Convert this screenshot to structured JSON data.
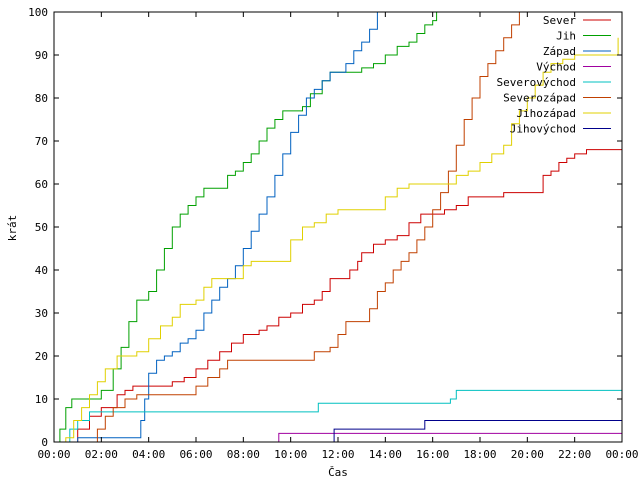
{
  "chart_data": {
    "type": "line",
    "xlabel": "Čas",
    "ylabel": "krát",
    "xlim": [
      "00:00",
      "24:00"
    ],
    "ylim": [
      0,
      100
    ],
    "x_ticks": [
      "00:00",
      "02:00",
      "04:00",
      "06:00",
      "08:00",
      "10:00",
      "12:00",
      "14:00",
      "16:00",
      "18:00",
      "20:00",
      "22:00",
      "00:00"
    ],
    "y_ticks": [
      0,
      10,
      20,
      30,
      40,
      50,
      60,
      70,
      80,
      90,
      100
    ],
    "legend_position": "top-right",
    "step": true,
    "series": [
      {
        "name": "Sever",
        "color": "#cc0000",
        "points": [
          [
            "00:00",
            0
          ],
          [
            "00:30",
            0
          ],
          [
            "01:00",
            3
          ],
          [
            "01:30",
            6
          ],
          [
            "02:00",
            8
          ],
          [
            "02:40",
            11
          ],
          [
            "03:00",
            12
          ],
          [
            "03:20",
            13
          ],
          [
            "04:30",
            13
          ],
          [
            "05:00",
            14
          ],
          [
            "05:30",
            15
          ],
          [
            "06:00",
            17
          ],
          [
            "06:30",
            19
          ],
          [
            "07:00",
            21
          ],
          [
            "07:30",
            23
          ],
          [
            "08:00",
            25
          ],
          [
            "08:40",
            26
          ],
          [
            "09:00",
            27
          ],
          [
            "09:30",
            29
          ],
          [
            "10:00",
            30
          ],
          [
            "10:30",
            32
          ],
          [
            "11:00",
            33
          ],
          [
            "11:20",
            35
          ],
          [
            "11:40",
            38
          ],
          [
            "12:30",
            40
          ],
          [
            "12:50",
            42
          ],
          [
            "13:00",
            44
          ],
          [
            "13:30",
            46
          ],
          [
            "14:00",
            47
          ],
          [
            "14:30",
            48
          ],
          [
            "15:00",
            51
          ],
          [
            "15:30",
            53
          ],
          [
            "16:30",
            54
          ],
          [
            "17:00",
            55
          ],
          [
            "17:30",
            57
          ],
          [
            "18:30",
            57
          ],
          [
            "19:00",
            58
          ],
          [
            "20:00",
            58
          ],
          [
            "20:40",
            62
          ],
          [
            "21:00",
            63
          ],
          [
            "21:20",
            65
          ],
          [
            "21:40",
            66
          ],
          [
            "22:00",
            67
          ],
          [
            "22:30",
            68
          ],
          [
            "23:40",
            68
          ],
          [
            "24:00",
            70
          ]
        ]
      },
      {
        "name": "Jih",
        "color": "#00a000",
        "points": [
          [
            "00:00",
            0
          ],
          [
            "00:15",
            3
          ],
          [
            "00:30",
            8
          ],
          [
            "00:45",
            10
          ],
          [
            "01:30",
            10
          ],
          [
            "02:00",
            12
          ],
          [
            "02:30",
            17
          ],
          [
            "02:50",
            22
          ],
          [
            "03:10",
            28
          ],
          [
            "03:30",
            33
          ],
          [
            "04:00",
            35
          ],
          [
            "04:20",
            40
          ],
          [
            "04:40",
            45
          ],
          [
            "05:00",
            50
          ],
          [
            "05:20",
            53
          ],
          [
            "05:40",
            55
          ],
          [
            "06:00",
            57
          ],
          [
            "06:20",
            59
          ],
          [
            "07:00",
            59
          ],
          [
            "07:20",
            62
          ],
          [
            "07:40",
            63
          ],
          [
            "08:00",
            65
          ],
          [
            "08:20",
            67
          ],
          [
            "08:40",
            70
          ],
          [
            "09:00",
            73
          ],
          [
            "09:20",
            75
          ],
          [
            "09:40",
            77
          ],
          [
            "10:30",
            78
          ],
          [
            "10:50",
            81
          ],
          [
            "11:20",
            84
          ],
          [
            "11:40",
            86
          ],
          [
            "12:30",
            86
          ],
          [
            "13:00",
            87
          ],
          [
            "13:30",
            88
          ],
          [
            "14:00",
            90
          ],
          [
            "14:30",
            92
          ],
          [
            "15:00",
            93
          ],
          [
            "15:20",
            95
          ],
          [
            "15:40",
            97
          ],
          [
            "16:00",
            98
          ],
          [
            "16:10",
            100
          ],
          [
            "18:00",
            100
          ]
        ]
      },
      {
        "name": "Západ",
        "color": "#0060c0",
        "points": [
          [
            "00:00",
            0
          ],
          [
            "01:00",
            1
          ],
          [
            "03:20",
            1
          ],
          [
            "03:40",
            5
          ],
          [
            "03:50",
            10
          ],
          [
            "04:00",
            16
          ],
          [
            "04:20",
            19
          ],
          [
            "04:40",
            20
          ],
          [
            "05:00",
            21
          ],
          [
            "05:20",
            23
          ],
          [
            "05:40",
            24
          ],
          [
            "06:00",
            26
          ],
          [
            "06:20",
            30
          ],
          [
            "06:40",
            33
          ],
          [
            "07:00",
            36
          ],
          [
            "07:20",
            38
          ],
          [
            "07:40",
            41
          ],
          [
            "08:00",
            45
          ],
          [
            "08:20",
            49
          ],
          [
            "08:40",
            53
          ],
          [
            "09:00",
            57
          ],
          [
            "09:20",
            62
          ],
          [
            "09:40",
            67
          ],
          [
            "10:00",
            72
          ],
          [
            "10:20",
            76
          ],
          [
            "10:40",
            80
          ],
          [
            "11:00",
            82
          ],
          [
            "11:20",
            84
          ],
          [
            "11:40",
            86
          ],
          [
            "12:00",
            86
          ],
          [
            "12:20",
            88
          ],
          [
            "12:40",
            91
          ],
          [
            "13:00",
            93
          ],
          [
            "13:20",
            96
          ],
          [
            "13:40",
            100
          ]
        ]
      },
      {
        "name": "Východ",
        "color": "#a000a0",
        "points": [
          [
            "00:00",
            0
          ],
          [
            "09:20",
            0
          ],
          [
            "09:30",
            2
          ],
          [
            "24:00",
            2
          ]
        ]
      },
      {
        "name": "Severovýchod",
        "color": "#00c0c0",
        "points": [
          [
            "00:00",
            0
          ],
          [
            "00:40",
            3
          ],
          [
            "01:00",
            5
          ],
          [
            "01:30",
            7
          ],
          [
            "11:00",
            7
          ],
          [
            "11:10",
            9
          ],
          [
            "16:30",
            9
          ],
          [
            "16:45",
            10
          ],
          [
            "17:00",
            12
          ],
          [
            "24:00",
            12
          ]
        ]
      },
      {
        "name": "Severozápad",
        "color": "#c04000",
        "points": [
          [
            "00:00",
            0
          ],
          [
            "01:30",
            0
          ],
          [
            "01:50",
            3
          ],
          [
            "02:10",
            6
          ],
          [
            "02:30",
            8
          ],
          [
            "03:00",
            10
          ],
          [
            "03:30",
            11
          ],
          [
            "05:40",
            11
          ],
          [
            "06:00",
            13
          ],
          [
            "06:30",
            15
          ],
          [
            "07:00",
            17
          ],
          [
            "07:20",
            19
          ],
          [
            "10:40",
            19
          ],
          [
            "11:00",
            21
          ],
          [
            "11:40",
            22
          ],
          [
            "12:00",
            25
          ],
          [
            "12:20",
            28
          ],
          [
            "13:00",
            28
          ],
          [
            "13:20",
            31
          ],
          [
            "13:40",
            35
          ],
          [
            "14:00",
            37
          ],
          [
            "14:20",
            40
          ],
          [
            "14:40",
            42
          ],
          [
            "15:00",
            44
          ],
          [
            "15:20",
            47
          ],
          [
            "15:40",
            50
          ],
          [
            "16:00",
            54
          ],
          [
            "16:20",
            58
          ],
          [
            "16:40",
            63
          ],
          [
            "17:00",
            69
          ],
          [
            "17:20",
            75
          ],
          [
            "17:40",
            80
          ],
          [
            "18:00",
            85
          ],
          [
            "18:20",
            88
          ],
          [
            "18:40",
            91
          ],
          [
            "19:00",
            94
          ],
          [
            "19:20",
            97
          ],
          [
            "19:40",
            100
          ],
          [
            "21:00",
            100
          ]
        ]
      },
      {
        "name": "Jihozápad",
        "color": "#e0d000",
        "points": [
          [
            "00:00",
            0
          ],
          [
            "00:30",
            1
          ],
          [
            "00:50",
            5
          ],
          [
            "01:10",
            8
          ],
          [
            "01:30",
            11
          ],
          [
            "01:50",
            14
          ],
          [
            "02:10",
            17
          ],
          [
            "02:40",
            20
          ],
          [
            "03:30",
            21
          ],
          [
            "04:00",
            24
          ],
          [
            "04:30",
            27
          ],
          [
            "05:00",
            29
          ],
          [
            "05:20",
            32
          ],
          [
            "06:00",
            33
          ],
          [
            "06:20",
            36
          ],
          [
            "06:40",
            38
          ],
          [
            "07:40",
            38
          ],
          [
            "08:00",
            41
          ],
          [
            "08:20",
            42
          ],
          [
            "09:40",
            42
          ],
          [
            "10:00",
            47
          ],
          [
            "10:30",
            50
          ],
          [
            "11:00",
            51
          ],
          [
            "11:30",
            53
          ],
          [
            "12:00",
            54
          ],
          [
            "13:30",
            54
          ],
          [
            "14:00",
            57
          ],
          [
            "14:30",
            59
          ],
          [
            "15:00",
            60
          ],
          [
            "16:40",
            60
          ],
          [
            "17:00",
            62
          ],
          [
            "17:30",
            63
          ],
          [
            "18:00",
            65
          ],
          [
            "18:30",
            67
          ],
          [
            "19:00",
            69
          ],
          [
            "19:20",
            74
          ],
          [
            "19:40",
            77
          ],
          [
            "20:00",
            80
          ],
          [
            "20:20",
            83
          ],
          [
            "20:40",
            86
          ],
          [
            "21:00",
            88
          ],
          [
            "21:30",
            89
          ],
          [
            "22:00",
            90
          ],
          [
            "23:30",
            90
          ],
          [
            "23:50",
            94
          ]
        ]
      },
      {
        "name": "Jihovýchod",
        "color": "#00008b",
        "points": [
          [
            "00:00",
            0
          ],
          [
            "11:40",
            0
          ],
          [
            "11:50",
            3
          ],
          [
            "15:30",
            3
          ],
          [
            "15:40",
            5
          ],
          [
            "24:00",
            5
          ]
        ]
      }
    ]
  }
}
